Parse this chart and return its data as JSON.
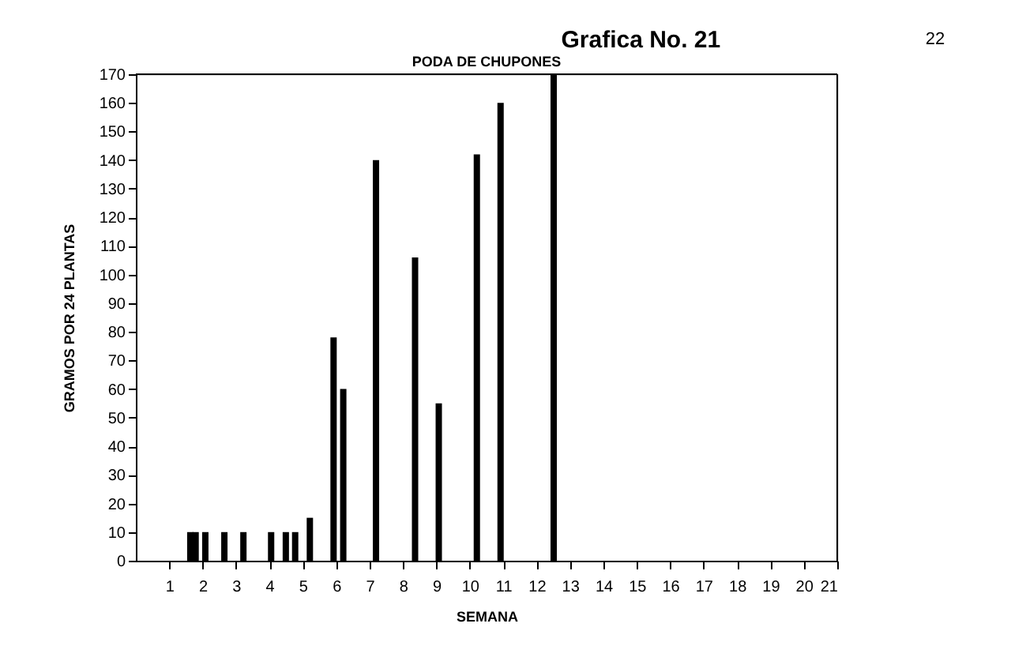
{
  "chart_data": {
    "type": "bar",
    "title": "PODA DE CHUPONES",
    "xlabel": "SEMANA",
    "ylabel": "GRAMOS POR 24 PLANTAS",
    "annotations": [
      "Grafica No. 21",
      "22"
    ],
    "x": [
      1.63,
      1.79,
      2.08,
      2.65,
      3.22,
      4.05,
      4.49,
      4.77,
      5.21,
      5.92,
      6.21,
      7.19,
      8.36,
      9.07,
      10.21,
      10.92,
      12.51
    ],
    "values": [
      10,
      10,
      10,
      10,
      10,
      10,
      10,
      10,
      15,
      78,
      60,
      140,
      106,
      55,
      142,
      160,
      170
    ],
    "color": "#000000",
    "xlim": [
      0,
      21
    ],
    "xticks": [
      1,
      2,
      3,
      4,
      5,
      6,
      7,
      8,
      9,
      10,
      11,
      12,
      13,
      14,
      15,
      16,
      17,
      18,
      19,
      20,
      21
    ],
    "ylim": [
      0,
      170
    ],
    "yticks": [
      0,
      10,
      20,
      30,
      40,
      50,
      60,
      70,
      80,
      90,
      100,
      110,
      120,
      130,
      140,
      150,
      160,
      170
    ],
    "grid": false
  }
}
